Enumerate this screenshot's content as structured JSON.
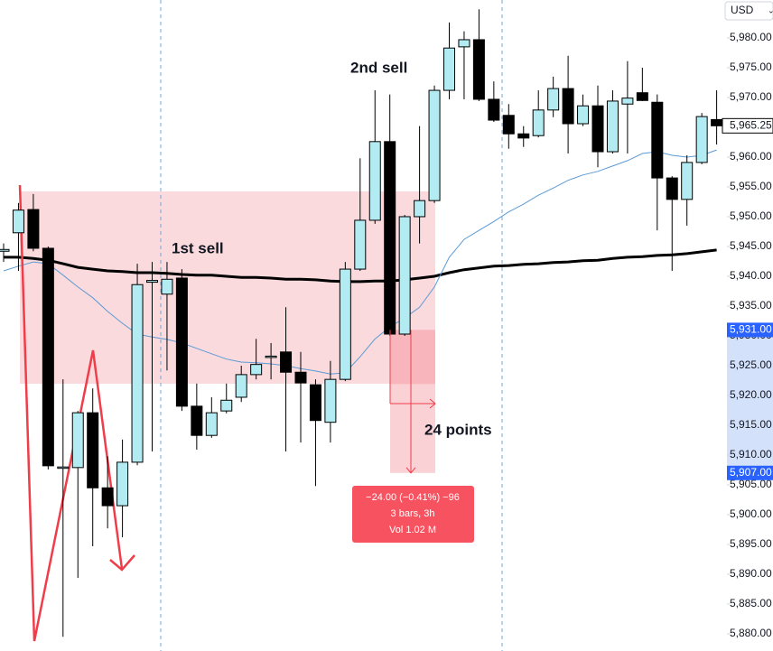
{
  "chart_data": {
    "type": "candlestick",
    "currency": "USD",
    "ylim": [
      5877.12,
      5986.36
    ],
    "yticks": [
      {
        "value": 5880,
        "label": "5,880.00"
      },
      {
        "value": 5885,
        "label": "5,885.00"
      },
      {
        "value": 5890,
        "label": "5,890.00"
      },
      {
        "value": 5895,
        "label": "5,895.00"
      },
      {
        "value": 5900,
        "label": "5,900.00"
      },
      {
        "value": 5905,
        "label": "5,905.00"
      },
      {
        "value": 5910,
        "label": "5,910.00"
      },
      {
        "value": 5915,
        "label": "5,915.00"
      },
      {
        "value": 5920,
        "label": "5,920.00"
      },
      {
        "value": 5925,
        "label": "5,925.00"
      },
      {
        "value": 5930,
        "label": "5,930.00"
      },
      {
        "value": 5935,
        "label": "5,935.00"
      },
      {
        "value": 5940,
        "label": "5,940.00"
      },
      {
        "value": 5945,
        "label": "5,945.00"
      },
      {
        "value": 5950,
        "label": "5,950.00"
      },
      {
        "value": 5955,
        "label": "5,955.00"
      },
      {
        "value": 5960,
        "label": "5,960.00"
      },
      {
        "value": 5965,
        "label": "5,965.00"
      },
      {
        "value": 5970,
        "label": "5,970.00"
      },
      {
        "value": 5975,
        "label": "5,975.00"
      },
      {
        "value": 5980,
        "label": "5,980.00"
      }
    ],
    "grid": false,
    "up_color": "#b2ebf2",
    "down_color": "#000000",
    "open": [
      5944.2,
      5947.3,
      5951.2,
      5944.7,
      5907.9,
      5907.9,
      5917.1,
      5904.5,
      5901.5,
      5908.8,
      5939.0,
      5937.0,
      5939.7,
      5918.2,
      5913.3,
      5917.4,
      5919.7,
      5923.5,
      5926.5,
      5927.3,
      5923.9,
      5921.8,
      5915.5,
      5922.7,
      5941.2,
      5949.4,
      5962.6,
      5930.3,
      5950.0,
      5952.7,
      5971.2,
      5978.5,
      5979.7,
      5969.7,
      5967.0,
      5963.9,
      5963.6,
      5967.9,
      5971.5,
      5965.6,
      5968.6,
      5960.9,
      5968.9,
      5970.8,
      5969.2,
      5956.5,
      5952.9,
      5959.1,
      5966.3
    ],
    "high": [
      5945.5,
      5952.3,
      5953.8,
      5945.0,
      5922.7,
      5917.4,
      5921.2,
      5909.8,
      5912.6,
      5942.1,
      5942.4,
      5942.4,
      5941.2,
      5922.0,
      5919.7,
      5922.0,
      5925.0,
      5929.5,
      5928.8,
      5934.8,
      5927.3,
      5922.7,
      5925.8,
      5942.4,
      5959.8,
      5971.2,
      5970.5,
      5950.3,
      5965.2,
      5972.0,
      5982.6,
      5981.1,
      5984.8,
      5972.7,
      5968.9,
      5965.2,
      5971.2,
      5973.5,
      5977.0,
      5970.5,
      5972.0,
      5971.2,
      5976.1,
      5975.0,
      5970.5,
      5956.8,
      5960.3,
      5967.4,
      5971.2
    ],
    "low": [
      5942.4,
      5940.9,
      5944.2,
      5907.6,
      5879.5,
      5889.4,
      5894.7,
      5897.7,
      5896.2,
      5908.3,
      5910.6,
      5924.2,
      5917.4,
      5910.9,
      5912.9,
      5917.0,
      5918.9,
      5922.7,
      5922.7,
      5910.6,
      5912.1,
      5904.8,
      5912.1,
      5922.4,
      5940.9,
      5948.8,
      5930.0,
      5930.0,
      5945.5,
      5952.3,
      5969.7,
      5969.7,
      5969.4,
      5965.9,
      5961.4,
      5961.7,
      5963.3,
      5966.7,
      5960.6,
      5965.2,
      5958.3,
      5960.6,
      5960.6,
      5969.4,
      5947.7,
      5940.9,
      5948.5,
      5958.8,
      5962.1
    ],
    "close": [
      5944.5,
      5951.1,
      5944.7,
      5908.2,
      5908.0,
      5917.1,
      5904.5,
      5901.5,
      5908.8,
      5938.6,
      5939.3,
      5939.5,
      5918.2,
      5913.3,
      5917.1,
      5919.2,
      5923.5,
      5925.2,
      5926.6,
      5923.9,
      5922.1,
      5915.8,
      5922.7,
      5941.2,
      5949.4,
      5962.6,
      5930.3,
      5950.0,
      5952.7,
      5971.2,
      5978.3,
      5979.7,
      5969.7,
      5966.2,
      5963.9,
      5963.2,
      5967.9,
      5971.5,
      5965.6,
      5968.6,
      5960.9,
      5969.4,
      5969.9,
      5969.5,
      5956.5,
      5952.9,
      5959.1,
      5966.8,
      5965.25
    ],
    "overlays": [
      {
        "color": "#000000",
        "values": [
          5943.2,
          5943.2,
          5943.0,
          5942.7,
          5942.1,
          5941.5,
          5941.2,
          5940.9,
          5940.8,
          5940.6,
          5940.6,
          5940.5,
          5940.3,
          5940.2,
          5940.2,
          5940.0,
          5939.8,
          5939.8,
          5939.7,
          5939.5,
          5939.5,
          5939.4,
          5939.2,
          5939.1,
          5939.1,
          5939.2,
          5939.2,
          5939.4,
          5939.7,
          5940.0,
          5940.6,
          5941.1,
          5941.4,
          5941.7,
          5941.8,
          5942.0,
          5942.1,
          5942.3,
          5942.4,
          5942.6,
          5942.7,
          5943.0,
          5943.2,
          5943.3,
          5943.5,
          5943.6,
          5943.8,
          5944.1,
          5944.4
        ]
      },
      {
        "color": "#5b9bd5",
        "values": [
          5940.9,
          5941.7,
          5942.4,
          5942.1,
          5940.2,
          5938.2,
          5936.4,
          5934.1,
          5932.1,
          5930.3,
          5929.8,
          5929.4,
          5928.8,
          5927.9,
          5927.0,
          5926.1,
          5925.6,
          5925.5,
          5925.3,
          5925.0,
          5924.5,
          5924.1,
          5923.6,
          5923.8,
          5926.5,
          5929.5,
          5931.5,
          5933.0,
          5934.8,
          5938.2,
          5943.2,
          5946.2,
          5947.7,
          5949.2,
          5950.8,
          5952.1,
          5953.6,
          5954.8,
          5956.1,
          5957.0,
          5957.6,
          5958.5,
          5959.4,
          5960.6,
          5960.9,
          5960.3,
          5960.0,
          5960.3,
          5961.2
        ]
      }
    ],
    "price_labels": [
      {
        "value": 5931,
        "label": "5,931.00"
      },
      {
        "value": 5907,
        "label": "5,907.00"
      }
    ],
    "last_price": {
      "value": 5965.25,
      "label": "5,965.25"
    },
    "annotations": [
      "1st sell",
      "2nd sell",
      "24 points"
    ],
    "measure": [
      "−24.00 (−0.41%) −96",
      "3 bars, 3h",
      "Vol 1.02 M"
    ]
  }
}
